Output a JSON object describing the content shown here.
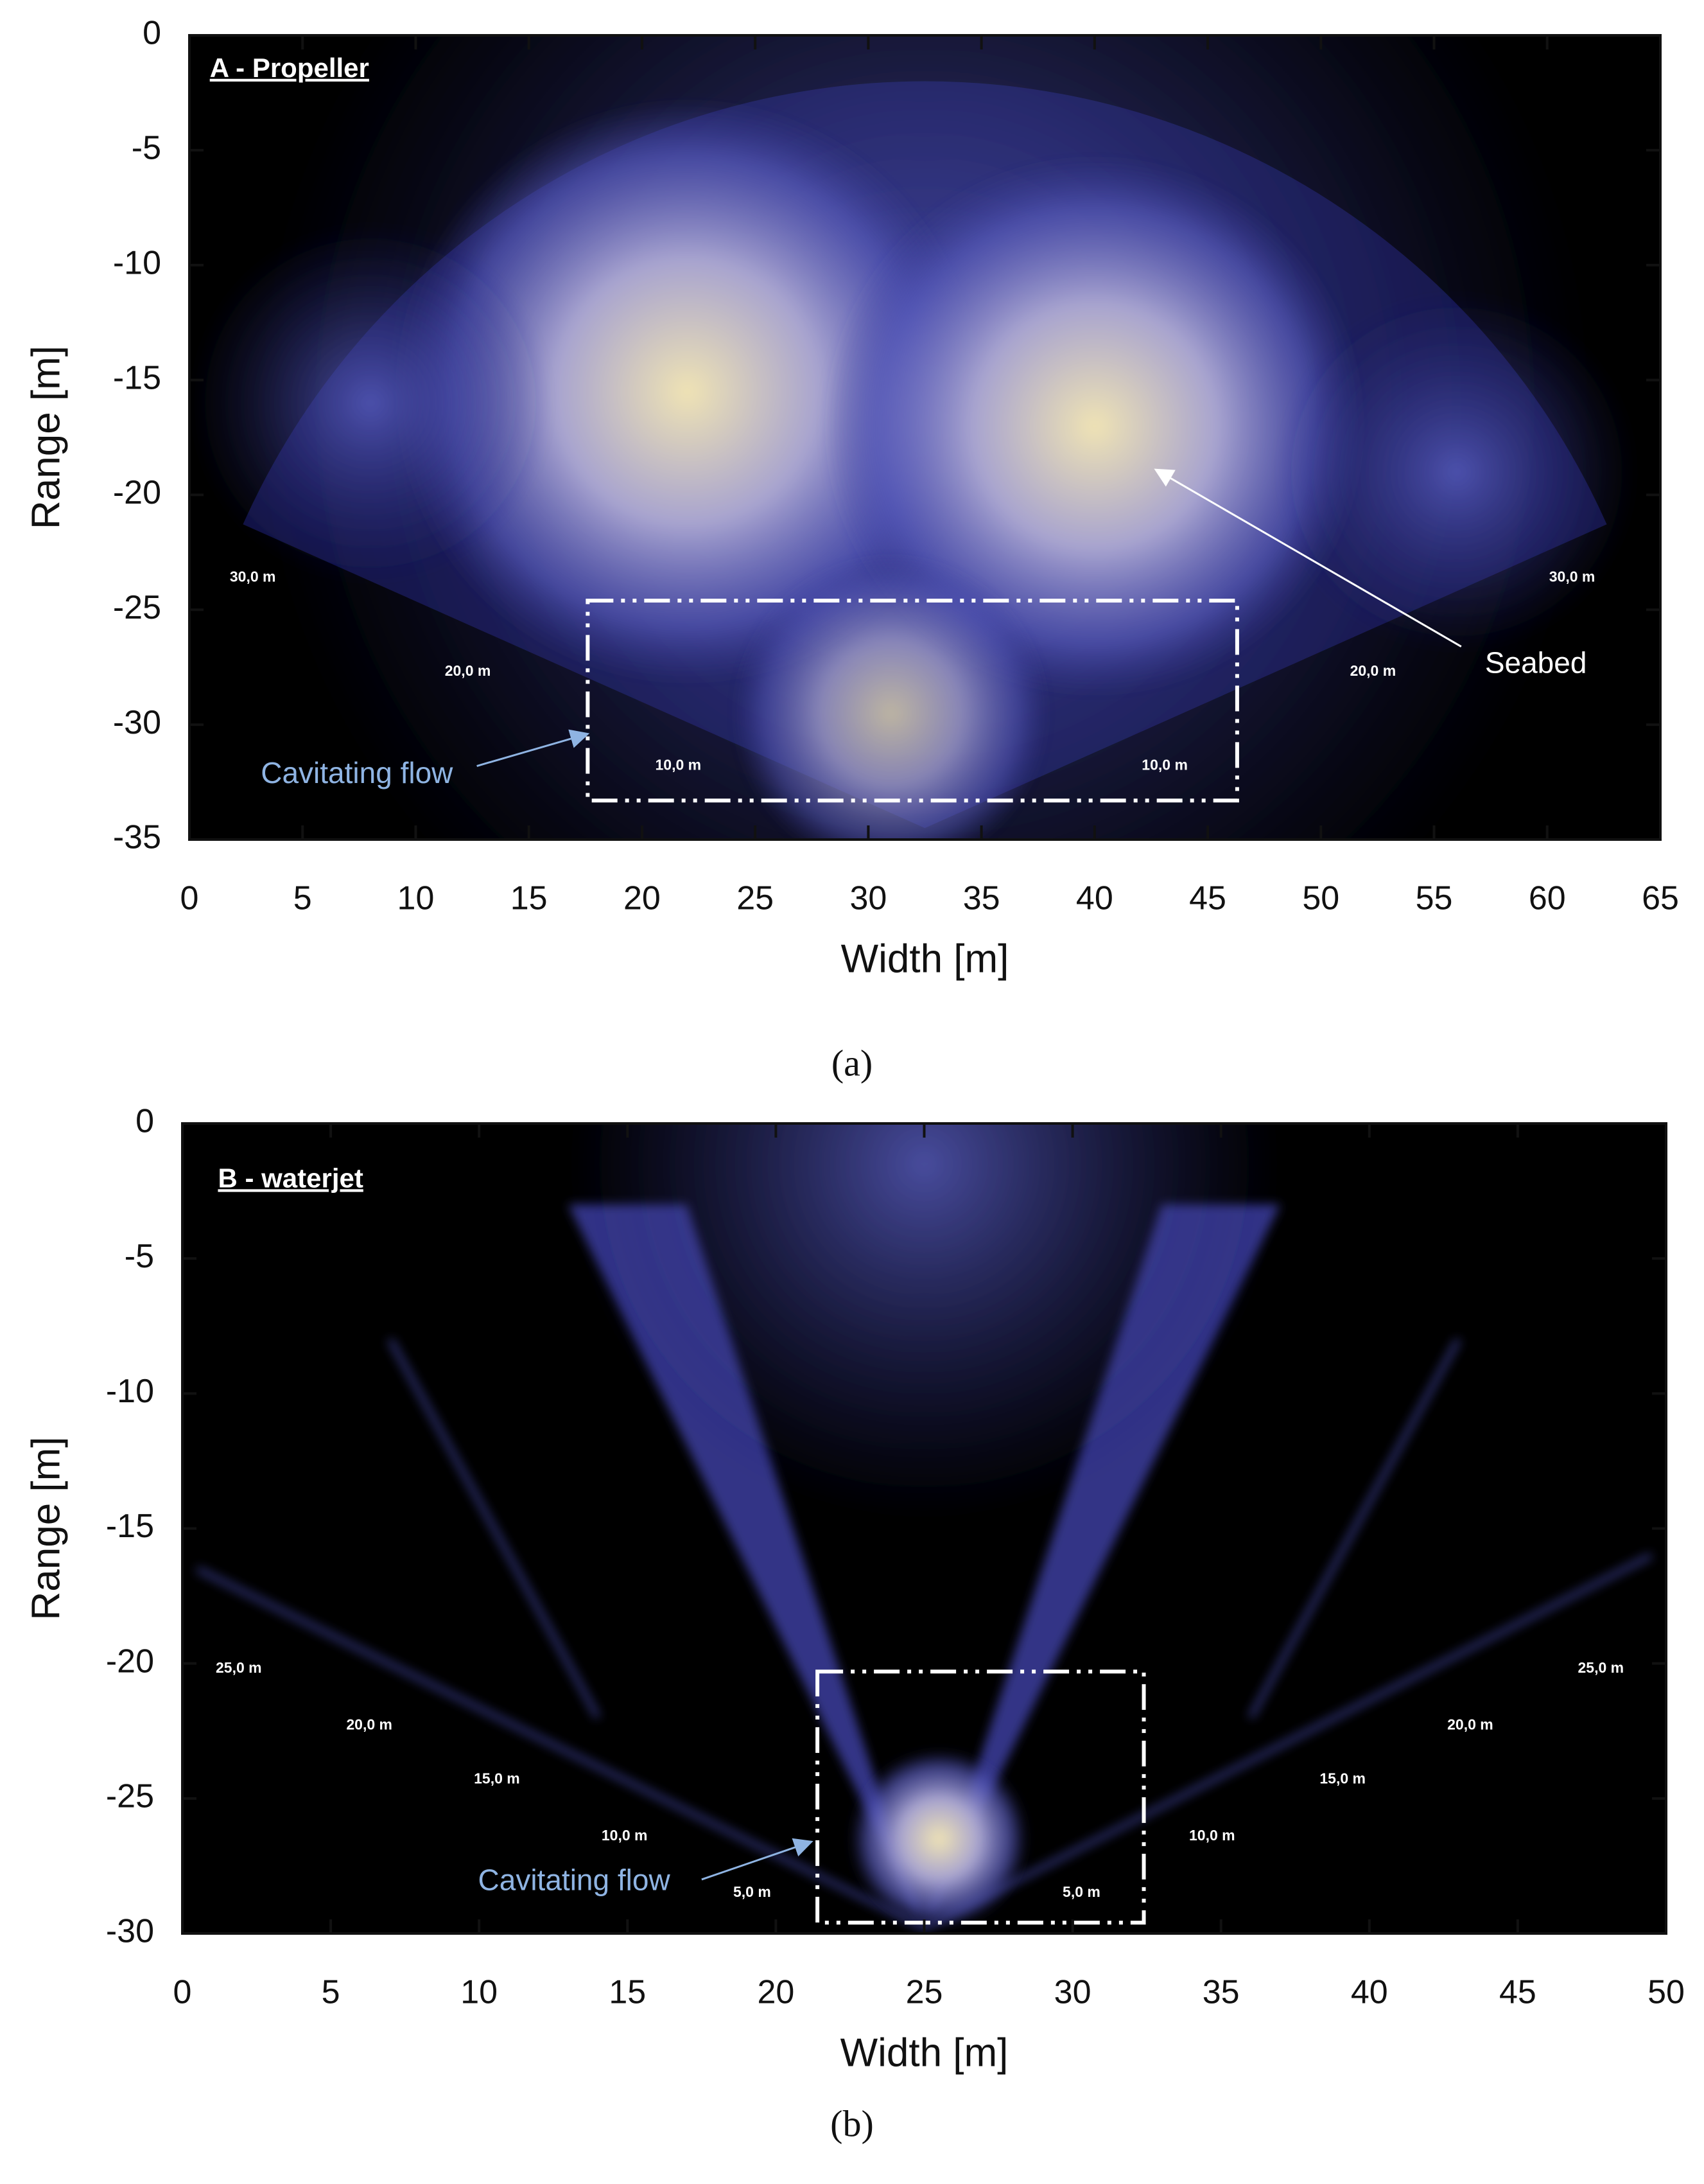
{
  "chart_data": [
    {
      "type": "sonar-image",
      "title": "A - Propeller",
      "xlabel": "Width [m]",
      "ylabel": "Range [m]",
      "xlim": [
        0,
        65
      ],
      "ylim": [
        -35,
        0
      ],
      "xticks": [
        0,
        5,
        10,
        15,
        20,
        25,
        30,
        35,
        40,
        45,
        50,
        55,
        60,
        65
      ],
      "yticks": [
        0,
        -5,
        -10,
        -15,
        -20,
        -25,
        -30,
        -35
      ],
      "annotations": [
        "Seabed",
        "Cavitating flow"
      ],
      "range_labels": [
        "30,0 m",
        "20,0 m",
        "10,0 m",
        "10,0 m",
        "20,0 m",
        "30,0 m"
      ],
      "highlight_box": {
        "x": [
          17.6,
          46.3
        ],
        "y": [
          -33.3,
          -24.6
        ]
      },
      "caption": "(a)"
    },
    {
      "type": "sonar-image",
      "title": "B - waterjet",
      "xlabel": "Width [m]",
      "ylabel": "Range [m]",
      "xlim": [
        0,
        50
      ],
      "ylim": [
        -30,
        0
      ],
      "xticks": [
        0,
        5,
        10,
        15,
        20,
        25,
        30,
        35,
        40,
        45,
        50
      ],
      "yticks": [
        0,
        -5,
        -10,
        -15,
        -20,
        -25,
        -30
      ],
      "annotations": [
        "Cavitating flow"
      ],
      "range_labels": [
        "25,0 m",
        "20,0 m",
        "15,0 m",
        "10,0 m",
        "5,0 m",
        "5,0 m",
        "10,0 m",
        "15,0 m",
        "20,0 m",
        "25,0 m"
      ],
      "highlight_box": {
        "x": [
          21.4,
          32.4
        ],
        "y": [
          -29.6,
          -20.3
        ]
      },
      "caption": "(b)"
    }
  ]
}
